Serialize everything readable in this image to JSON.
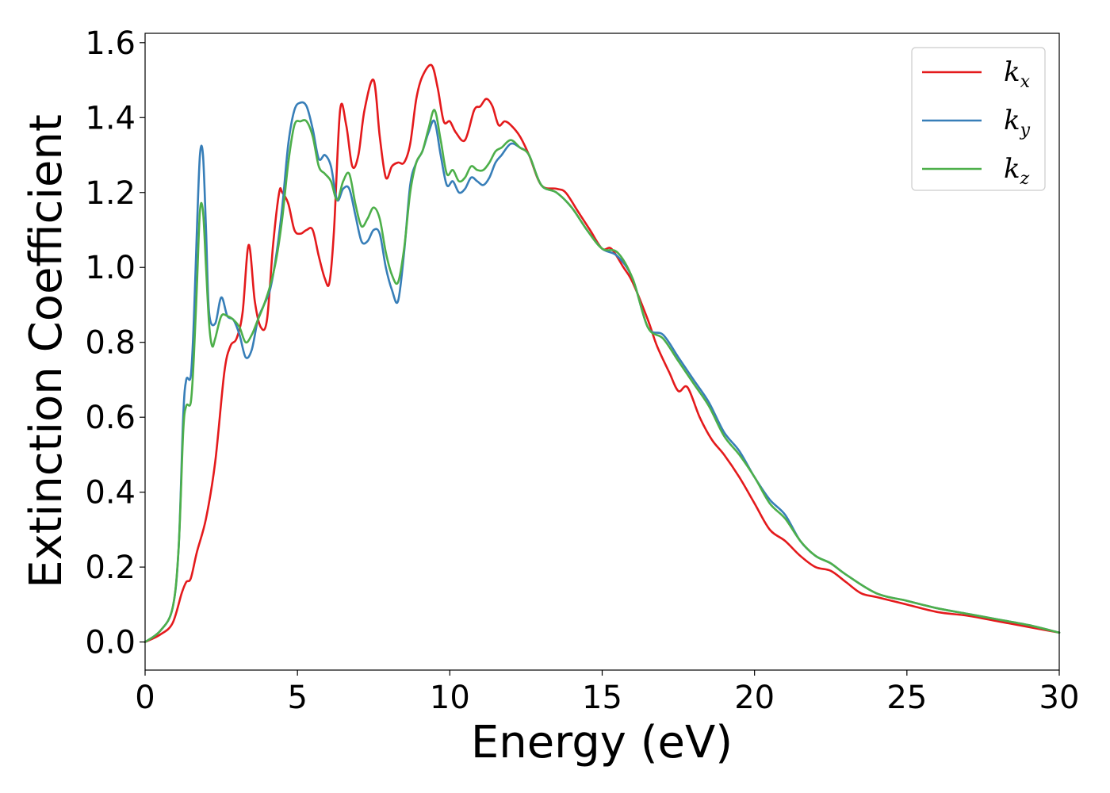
{
  "chart_data": {
    "type": "line",
    "title": "",
    "xlabel": "Energy (eV)",
    "ylabel": "Extinction Coefficient",
    "xlim": [
      0,
      30
    ],
    "ylim": [
      -0.075,
      1.625
    ],
    "xticks": [
      0,
      5,
      10,
      15,
      20,
      25,
      30
    ],
    "xtick_labels": [
      "0",
      "5",
      "10",
      "15",
      "20",
      "25",
      "30"
    ],
    "yticks": [
      0.0,
      0.2,
      0.4,
      0.6,
      0.8,
      1.0,
      1.2,
      1.4,
      1.6
    ],
    "ytick_labels": [
      "0.0",
      "0.2",
      "0.4",
      "0.6",
      "0.8",
      "1.0",
      "1.2",
      "1.4",
      "1.6"
    ],
    "grid": false,
    "legend_position": "top-right",
    "series": [
      {
        "name": "k_x",
        "legend_base": "k",
        "legend_sub": "x",
        "color": "#e41a1c",
        "x": [
          0,
          0.5,
          0.9,
          1.2,
          1.35,
          1.5,
          1.7,
          2.0,
          2.3,
          2.6,
          2.8,
          3.0,
          3.2,
          3.4,
          3.6,
          3.8,
          4.0,
          4.2,
          4.4,
          4.5,
          4.7,
          4.9,
          5.1,
          5.3,
          5.5,
          5.7,
          5.9,
          6.05,
          6.2,
          6.4,
          6.6,
          6.8,
          7.0,
          7.2,
          7.5,
          7.7,
          7.9,
          8.1,
          8.3,
          8.5,
          8.7,
          8.9,
          9.1,
          9.4,
          9.6,
          9.8,
          10.0,
          10.2,
          10.5,
          10.8,
          11.0,
          11.2,
          11.4,
          11.6,
          11.8,
          12.0,
          12.3,
          12.6,
          13.0,
          13.5,
          13.8,
          14.2,
          14.6,
          15.0,
          15.3,
          15.7,
          16.0,
          16.5,
          16.8,
          17.2,
          17.5,
          17.8,
          18.2,
          18.6,
          19.0,
          19.5,
          20.0,
          20.5,
          21.0,
          21.5,
          22.0,
          22.5,
          23.0,
          23.5,
          24.0,
          25.0,
          26.0,
          27.0,
          28.0,
          29.0,
          30.0
        ],
        "y": [
          0.0,
          0.02,
          0.05,
          0.13,
          0.16,
          0.17,
          0.24,
          0.33,
          0.48,
          0.72,
          0.79,
          0.81,
          0.88,
          1.06,
          0.91,
          0.84,
          0.86,
          1.06,
          1.2,
          1.2,
          1.17,
          1.1,
          1.09,
          1.1,
          1.1,
          1.03,
          0.97,
          0.96,
          1.1,
          1.42,
          1.38,
          1.27,
          1.3,
          1.42,
          1.5,
          1.35,
          1.24,
          1.27,
          1.28,
          1.28,
          1.33,
          1.45,
          1.51,
          1.54,
          1.48,
          1.39,
          1.39,
          1.36,
          1.34,
          1.42,
          1.43,
          1.45,
          1.43,
          1.38,
          1.39,
          1.38,
          1.35,
          1.3,
          1.22,
          1.21,
          1.2,
          1.15,
          1.1,
          1.05,
          1.05,
          1.0,
          0.96,
          0.86,
          0.79,
          0.72,
          0.67,
          0.68,
          0.6,
          0.54,
          0.5,
          0.44,
          0.37,
          0.3,
          0.27,
          0.23,
          0.2,
          0.19,
          0.16,
          0.13,
          0.12,
          0.1,
          0.08,
          0.07,
          0.055,
          0.04,
          0.025
        ]
      },
      {
        "name": "k_y",
        "legend_base": "k",
        "legend_sub": "y",
        "color": "#377eb8",
        "x": [
          0,
          0.5,
          0.9,
          1.1,
          1.25,
          1.35,
          1.5,
          1.6,
          1.7,
          1.8,
          1.9,
          2.0,
          2.1,
          2.3,
          2.5,
          2.7,
          2.9,
          3.1,
          3.3,
          3.5,
          3.7,
          3.9,
          4.1,
          4.3,
          4.5,
          4.7,
          4.9,
          5.1,
          5.3,
          5.5,
          5.7,
          5.9,
          6.1,
          6.3,
          6.5,
          6.7,
          6.9,
          7.1,
          7.3,
          7.5,
          7.7,
          7.9,
          8.1,
          8.3,
          8.5,
          8.7,
          8.9,
          9.1,
          9.3,
          9.5,
          9.7,
          9.9,
          10.1,
          10.3,
          10.5,
          10.7,
          10.9,
          11.1,
          11.3,
          11.5,
          11.7,
          12.0,
          12.3,
          12.6,
          13.0,
          13.5,
          14.0,
          14.5,
          15.0,
          15.5,
          16.0,
          16.5,
          17.0,
          17.5,
          18.0,
          18.5,
          19.0,
          19.5,
          20.0,
          20.5,
          21.0,
          21.5,
          22.0,
          22.5,
          23.0,
          24.0,
          25.0,
          26.0,
          27.0,
          28.0,
          29.0,
          30.0
        ],
        "y": [
          0.0,
          0.03,
          0.09,
          0.25,
          0.6,
          0.7,
          0.71,
          0.86,
          1.1,
          1.3,
          1.3,
          1.1,
          0.88,
          0.85,
          0.92,
          0.87,
          0.86,
          0.82,
          0.76,
          0.78,
          0.86,
          0.9,
          0.94,
          1.03,
          1.16,
          1.33,
          1.42,
          1.44,
          1.43,
          1.37,
          1.29,
          1.3,
          1.27,
          1.18,
          1.21,
          1.21,
          1.14,
          1.07,
          1.07,
          1.1,
          1.09,
          1.0,
          0.94,
          0.91,
          1.04,
          1.22,
          1.28,
          1.31,
          1.36,
          1.39,
          1.3,
          1.22,
          1.23,
          1.2,
          1.21,
          1.24,
          1.23,
          1.22,
          1.24,
          1.28,
          1.3,
          1.33,
          1.32,
          1.3,
          1.22,
          1.2,
          1.16,
          1.1,
          1.05,
          1.03,
          0.97,
          0.84,
          0.82,
          0.76,
          0.7,
          0.64,
          0.56,
          0.51,
          0.44,
          0.38,
          0.34,
          0.27,
          0.23,
          0.21,
          0.18,
          0.13,
          0.11,
          0.09,
          0.075,
          0.06,
          0.045,
          0.025
        ]
      },
      {
        "name": "k_z",
        "legend_base": "k",
        "legend_sub": "z",
        "color": "#4daf4a",
        "x": [
          0,
          0.5,
          0.9,
          1.1,
          1.25,
          1.35,
          1.5,
          1.6,
          1.7,
          1.8,
          1.9,
          2.0,
          2.1,
          2.2,
          2.3,
          2.5,
          2.7,
          2.9,
          3.1,
          3.3,
          3.5,
          3.7,
          3.9,
          4.1,
          4.3,
          4.5,
          4.7,
          4.9,
          5.1,
          5.3,
          5.5,
          5.7,
          5.9,
          6.1,
          6.3,
          6.5,
          6.7,
          6.9,
          7.1,
          7.3,
          7.5,
          7.7,
          7.9,
          8.1,
          8.3,
          8.5,
          8.7,
          8.9,
          9.1,
          9.3,
          9.5,
          9.7,
          9.9,
          10.1,
          10.3,
          10.5,
          10.7,
          10.9,
          11.1,
          11.3,
          11.5,
          11.7,
          12.0,
          12.3,
          12.6,
          13.0,
          13.5,
          14.0,
          14.5,
          15.0,
          15.5,
          16.0,
          16.5,
          17.0,
          17.5,
          18.0,
          18.5,
          19.0,
          19.5,
          20.0,
          20.5,
          21.0,
          21.5,
          22.0,
          22.5,
          23.0,
          24.0,
          25.0,
          26.0,
          27.0,
          28.0,
          29.0,
          30.0
        ],
        "y": [
          0.0,
          0.03,
          0.09,
          0.25,
          0.56,
          0.63,
          0.64,
          0.76,
          0.95,
          1.15,
          1.15,
          1.0,
          0.85,
          0.79,
          0.81,
          0.87,
          0.87,
          0.86,
          0.84,
          0.8,
          0.82,
          0.86,
          0.9,
          0.95,
          1.02,
          1.13,
          1.28,
          1.38,
          1.39,
          1.39,
          1.35,
          1.27,
          1.25,
          1.23,
          1.18,
          1.23,
          1.25,
          1.17,
          1.11,
          1.13,
          1.16,
          1.13,
          1.04,
          0.98,
          0.96,
          1.05,
          1.2,
          1.28,
          1.31,
          1.37,
          1.42,
          1.34,
          1.25,
          1.26,
          1.23,
          1.24,
          1.27,
          1.26,
          1.26,
          1.28,
          1.31,
          1.32,
          1.34,
          1.32,
          1.3,
          1.22,
          1.2,
          1.16,
          1.1,
          1.05,
          1.04,
          0.97,
          0.84,
          0.81,
          0.75,
          0.69,
          0.63,
          0.55,
          0.5,
          0.44,
          0.37,
          0.33,
          0.27,
          0.23,
          0.21,
          0.18,
          0.13,
          0.11,
          0.09,
          0.075,
          0.06,
          0.045,
          0.025
        ]
      }
    ]
  }
}
